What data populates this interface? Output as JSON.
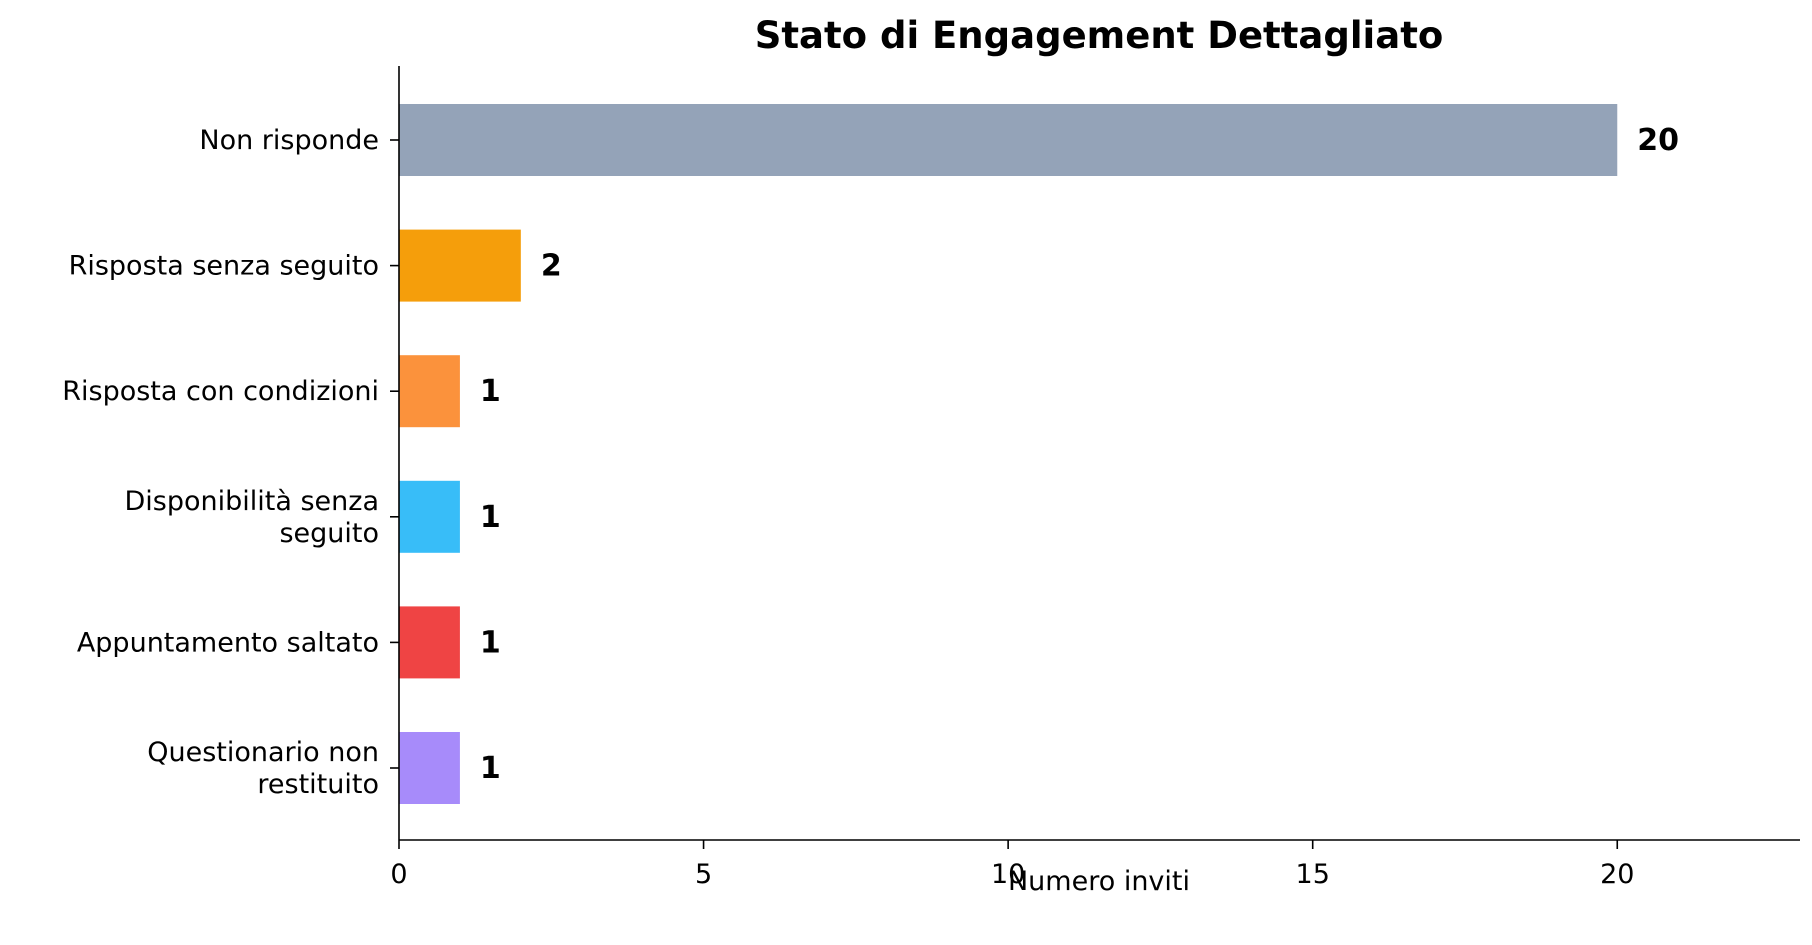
{
  "chart_data": {
    "type": "bar",
    "orientation": "horizontal",
    "title": "Stato di Engagement Dettagliato",
    "xlabel": "Numero inviti",
    "ylabel": "",
    "xlim": [
      0,
      23
    ],
    "xticks": [
      0,
      5,
      10,
      15,
      20
    ],
    "grid": false,
    "categories": [
      "Non risponde",
      "Risposta senza seguito",
      "Risposta con condizioni",
      "Disponibilità senza seguito",
      "Appuntamento saltato",
      "Questionario non restituito"
    ],
    "category_lines": [
      [
        "Non risponde"
      ],
      [
        "Risposta senza seguito"
      ],
      [
        "Risposta con condizioni"
      ],
      [
        "Disponibilità senza",
        "seguito"
      ],
      [
        "Appuntamento saltato"
      ],
      [
        "Questionario non",
        "restituito"
      ]
    ],
    "values": [
      20,
      2,
      1,
      1,
      1,
      1
    ],
    "colors": [
      "#94a3b8",
      "#f59e0b",
      "#fb923c",
      "#38bdf8",
      "#ef4444",
      "#a78bfa"
    ]
  }
}
